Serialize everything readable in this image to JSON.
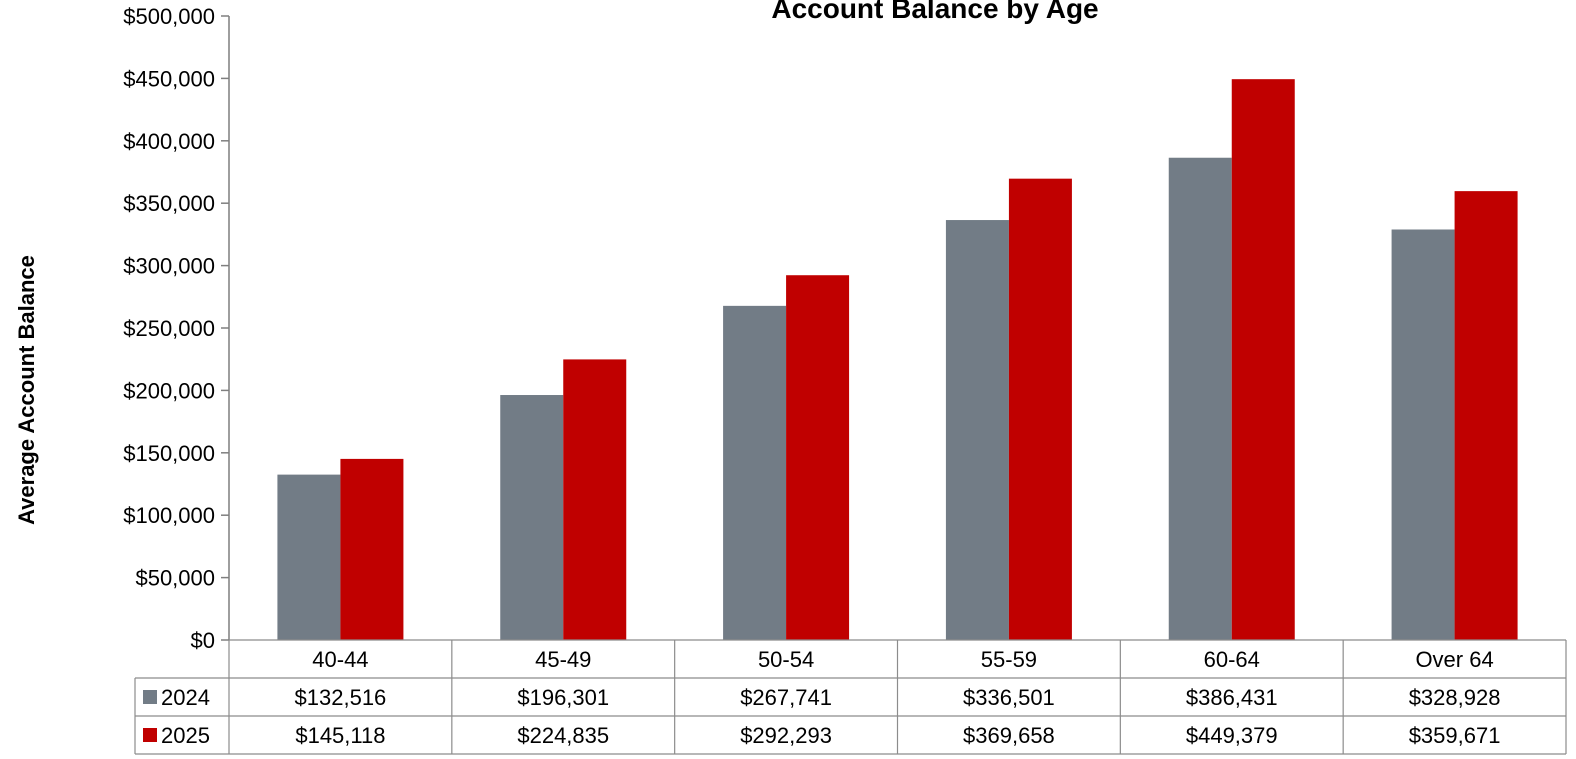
{
  "chart_data": {
    "type": "bar",
    "title": "Account Balance by Age",
    "ylabel": "Average Account Balance",
    "xlabel": "",
    "ylim": [
      0,
      500000
    ],
    "yticks": [
      0,
      50000,
      100000,
      150000,
      200000,
      250000,
      300000,
      350000,
      400000,
      450000,
      500000
    ],
    "ytick_labels": [
      "$0",
      "$50,000",
      "$100,000",
      "$150,000",
      "$200,000",
      "$250,000",
      "$300,000",
      "$350,000",
      "$400,000",
      "$450,000",
      "$500,000"
    ],
    "categories": [
      "40-44",
      "45-49",
      "50-54",
      "55-59",
      "60-64",
      "Over 64"
    ],
    "series": [
      {
        "name": "2024",
        "color": "#727c86",
        "values": [
          132516,
          196301,
          267741,
          336501,
          386431,
          328928
        ],
        "labels": [
          "$132,516",
          "$196,301",
          "$267,741",
          "$336,501",
          "$386,431",
          "$328,928"
        ]
      },
      {
        "name": "2025",
        "color": "#c00000",
        "values": [
          145118,
          224835,
          292293,
          369658,
          449379,
          359671
        ],
        "labels": [
          "$145,118",
          "$224,835",
          "$292,293",
          "$369,658",
          "$449,379",
          "$359,671"
        ]
      }
    ],
    "grid": false,
    "legend": "data-table"
  }
}
